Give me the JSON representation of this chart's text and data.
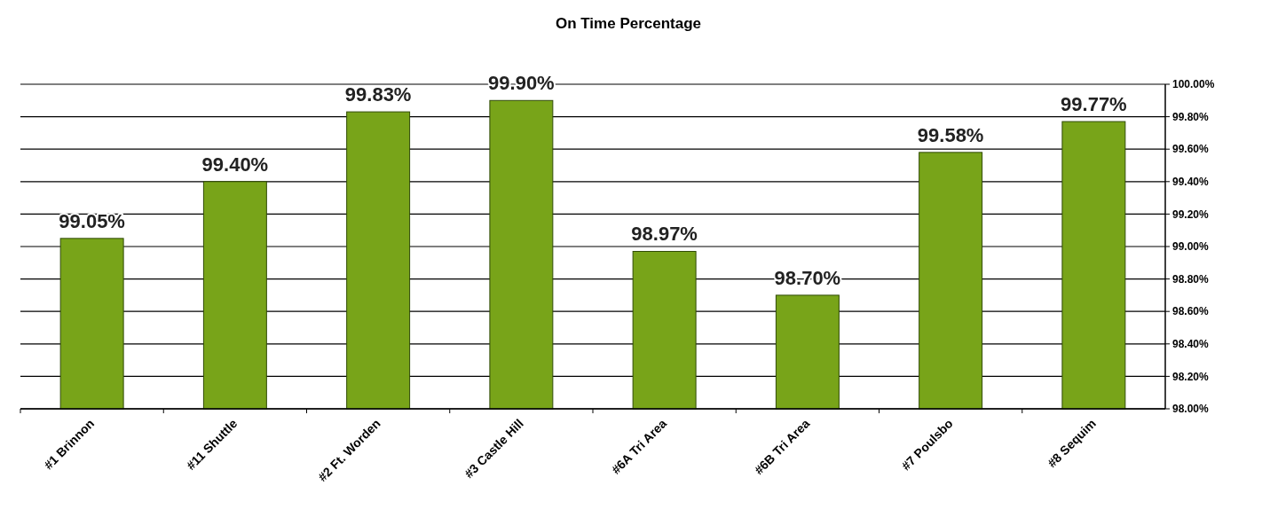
{
  "chart_data": {
    "type": "bar",
    "title": "On Time Percentage",
    "categories": [
      "#1 Brinnon",
      "#11 Shuttle",
      "#2 Ft. Worden",
      "#3 Castle Hill",
      "#6A Tri Area",
      "#6B Tri Area",
      "#7 Poulsbo",
      "#8 Sequim"
    ],
    "values": [
      99.05,
      99.4,
      99.83,
      99.9,
      98.97,
      98.7,
      99.58,
      99.77
    ],
    "value_labels": [
      "99.05%",
      "99.40%",
      "99.83%",
      "99.90%",
      "98.97%",
      "98.70%",
      "99.58%",
      "99.77%"
    ],
    "color": "#78a419",
    "ylim": [
      98,
      100
    ],
    "yticks": [
      {
        "value": 98,
        "label": "98.00%"
      },
      {
        "value": 98.2,
        "label": "98.20%"
      },
      {
        "value": 98.4,
        "label": "98.40%"
      },
      {
        "value": 98.6,
        "label": "98.60%"
      },
      {
        "value": 98.8,
        "label": "98.80%"
      },
      {
        "value": 99,
        "label": "99.00%"
      },
      {
        "value": 99.2,
        "label": "99.20%"
      },
      {
        "value": 99.4,
        "label": "99.40%"
      },
      {
        "value": 99.6,
        "label": "99.60%"
      },
      {
        "value": 99.8,
        "label": "99.80%"
      },
      {
        "value": 100,
        "label": "100.00%"
      }
    ],
    "grid": "y"
  }
}
